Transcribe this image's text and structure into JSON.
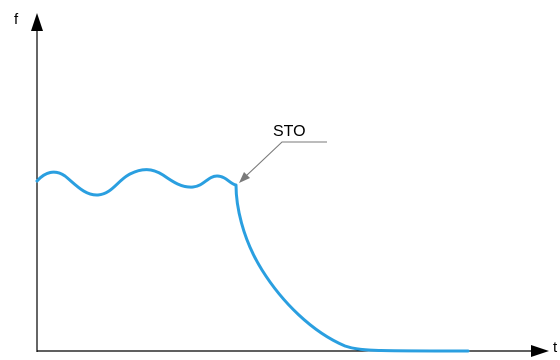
{
  "diagram": {
    "y_axis_label": "f",
    "x_axis_label": "t",
    "annotation": "STO",
    "colors": {
      "curve": "#2a9fe0",
      "axes": "#000000",
      "leader": "#7a7a7a"
    }
  }
}
